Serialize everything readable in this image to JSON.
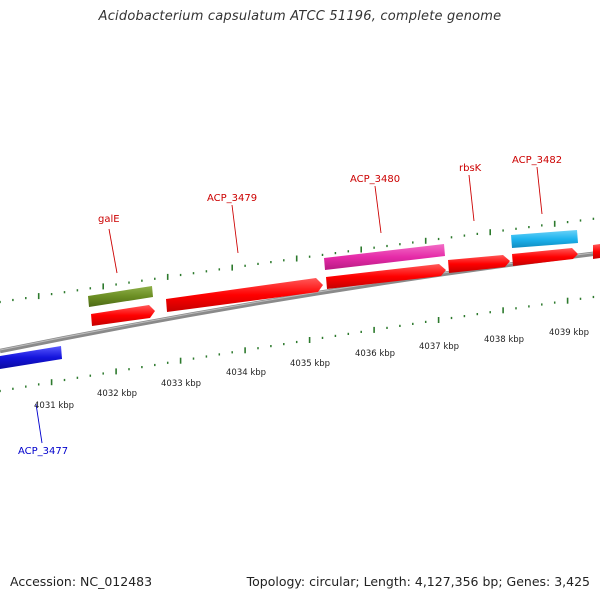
{
  "title": "Acidobacterium capsulatum ATCC 51196, complete genome",
  "footer": {
    "accession": "Accession: NC_012483",
    "summary": "Topology: circular; Length: 4,127,356 bp; Genes: 3,425"
  },
  "colors": {
    "label_red": "#cc0000",
    "label_blue": "#0000cc",
    "tick_green": "#2d7a2d",
    "backbone": "#8a8a8a",
    "gene_red": "#ff0000",
    "gene_olive": "#6b8e23",
    "gene_magenta": "#e62ba8",
    "gene_cyan": "#1eb4ef",
    "gene_blue": "#1414dc"
  },
  "genes": [
    {
      "name": "ACP_3477",
      "color": "gene_blue",
      "strand": "reverse"
    },
    {
      "name": "galE",
      "color": "gene_olive",
      "strand": "forward"
    },
    {
      "name": "",
      "color": "gene_red",
      "strand": "forward"
    },
    {
      "name": "ACP_3479",
      "color": "gene_red",
      "strand": "forward"
    },
    {
      "name": "ACP_3480",
      "color": "gene_magenta",
      "strand": "forward"
    },
    {
      "name": "",
      "color": "gene_red",
      "strand": "forward"
    },
    {
      "name": "rbsK",
      "color": "gene_red",
      "strand": "forward"
    },
    {
      "name": "ACP_3482",
      "color": "gene_cyan",
      "strand": "forward"
    },
    {
      "name": "",
      "color": "gene_red",
      "strand": "forward"
    },
    {
      "name": "",
      "color": "gene_red",
      "strand": "forward"
    }
  ],
  "scale_labels": [
    "4031 kbp",
    "4032 kbp",
    "4033 kbp",
    "4034 kbp",
    "4035 kbp",
    "4036 kbp",
    "4037 kbp",
    "4038 kbp",
    "4039 kbp"
  ]
}
